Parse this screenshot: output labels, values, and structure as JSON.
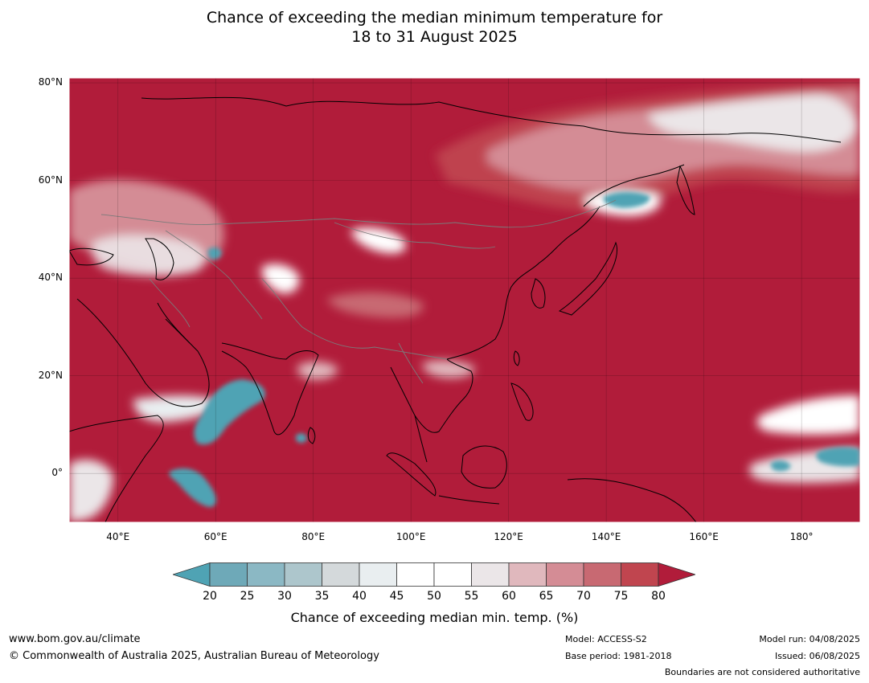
{
  "title": {
    "line1": "Chance of exceeding the median minimum temperature for",
    "line2": "18 to 31 August 2025"
  },
  "map": {
    "lon_range": [
      30,
      192
    ],
    "lat_range": [
      -10,
      81
    ],
    "lat_ticks": [
      {
        "value": 80,
        "label": "80°N"
      },
      {
        "value": 60,
        "label": "60°N"
      },
      {
        "value": 40,
        "label": "40°N"
      },
      {
        "value": 20,
        "label": "20°N"
      },
      {
        "value": 0,
        "label": "0°"
      }
    ],
    "lon_ticks": [
      {
        "value": 40,
        "label": "40°E"
      },
      {
        "value": 60,
        "label": "60°E"
      },
      {
        "value": 80,
        "label": "80°E"
      },
      {
        "value": 100,
        "label": "100°E"
      },
      {
        "value": 120,
        "label": "120°E"
      },
      {
        "value": 140,
        "label": "140°E"
      },
      {
        "value": 160,
        "label": "160°E"
      },
      {
        "value": 180,
        "label": "180°"
      }
    ],
    "background_color": "#b11c3a"
  },
  "colorbar": {
    "levels": [
      "20",
      "25",
      "30",
      "35",
      "40",
      "45",
      "50",
      "55",
      "60",
      "65",
      "70",
      "75",
      "80"
    ],
    "colors": [
      "#6ea9b8",
      "#8bb8c4",
      "#adc6cc",
      "#d4d9db",
      "#e9eef0",
      "#ffffff",
      "#ffffff",
      "#ebe6e8",
      "#e0b8bd",
      "#d48c95",
      "#c86972",
      "#c0454f"
    ],
    "under_color": "#4fa3b4",
    "over_color": "#b11c3a",
    "label": "Chance of exceeding median min. temp. (%)"
  },
  "footer": {
    "website": "www.bom.gov.au/climate",
    "copyright": "© Commonwealth of Australia 2025, Australian Bureau of Meteorology",
    "model": "Model: ACCESS-S2",
    "base_period": "Base period: 1981-2018",
    "model_run": "Model run: 04/08/2025",
    "issued": "Issued: 06/08/2025",
    "disclaimer": "Boundaries are not considered authoritative"
  }
}
